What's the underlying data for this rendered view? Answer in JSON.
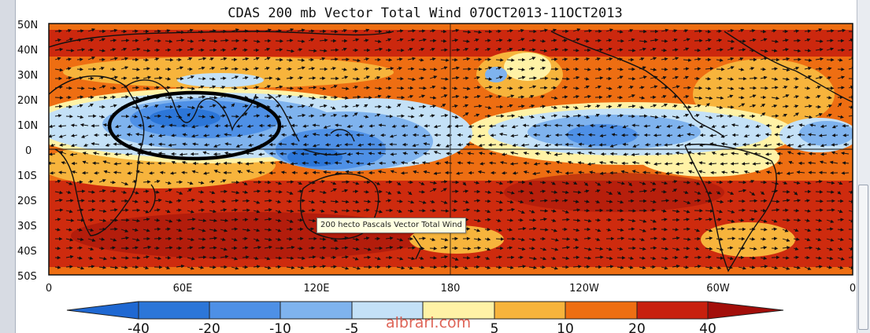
{
  "figure": {
    "title": "CDAS 200 mb Vector Total Wind 07OCT2013-11OCT2013",
    "lat_labels": [
      "50N",
      "40N",
      "30N",
      "20N",
      "10N",
      "0",
      "10S",
      "20S",
      "30S",
      "40S",
      "50S"
    ],
    "lon_labels": [
      "0",
      "60E",
      "120E",
      "180",
      "120W",
      "60W",
      "0"
    ],
    "colorbar_labels": [
      "-40",
      "-20",
      "-10",
      "-5",
      "5",
      "10",
      "20",
      "40"
    ],
    "colorbar_colors": [
      "#2c76d8",
      "#4e90e6",
      "#7fb3ee",
      "#c4e1f7",
      "#fff2a6",
      "#f7b43c",
      "#ee6e12",
      "#c8200e"
    ],
    "arrow_left_color": "#1f68d2",
    "arrow_right_color": "#a30e0a",
    "highlight": "ellipse-outline"
  },
  "tooltip": {
    "text": "200 hecto Pascals Vector Total Wind"
  },
  "watermark": {
    "text": "albrari.com"
  }
}
